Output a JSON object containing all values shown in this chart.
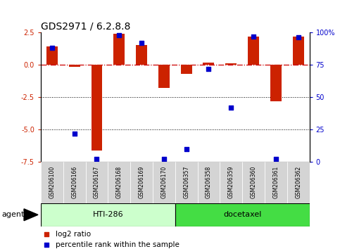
{
  "title": "GDS2971 / 6.2.8.8",
  "samples": [
    "GSM206100",
    "GSM206166",
    "GSM206167",
    "GSM206168",
    "GSM206169",
    "GSM206170",
    "GSM206357",
    "GSM206358",
    "GSM206359",
    "GSM206360",
    "GSM206361",
    "GSM206362"
  ],
  "log2_ratio": [
    1.4,
    -0.15,
    -6.6,
    2.4,
    1.5,
    -1.8,
    -0.7,
    0.15,
    0.1,
    2.2,
    -2.8,
    2.2
  ],
  "percentile_rank": [
    88,
    22,
    2,
    98,
    92,
    2,
    10,
    72,
    42,
    97,
    2,
    96
  ],
  "agents": [
    {
      "label": "HTI-286",
      "start": 0,
      "end": 6,
      "color": "#ccffcc"
    },
    {
      "label": "docetaxel",
      "start": 6,
      "end": 12,
      "color": "#44dd44"
    }
  ],
  "agent_label": "agent",
  "ylim": [
    -7.5,
    2.5
  ],
  "yticks_left": [
    2.5,
    0.0,
    -2.5,
    -5.0,
    -7.5
  ],
  "yticks_right": [
    100,
    75,
    50,
    25,
    0
  ],
  "hline_zero_color": "#cc0000",
  "hline_zero_style": "-.",
  "hline_dot_color": "black",
  "hline_dot_style": ":",
  "bar_color": "#cc2200",
  "dot_color": "#0000cc",
  "background_color": "#ffffff",
  "legend_red_label": "log2 ratio",
  "legend_blue_label": "percentile rank within the sample",
  "title_fontsize": 10,
  "tick_fontsize": 7,
  "sample_fontsize": 5.5,
  "agent_fontsize": 8,
  "legend_fontsize": 7.5
}
